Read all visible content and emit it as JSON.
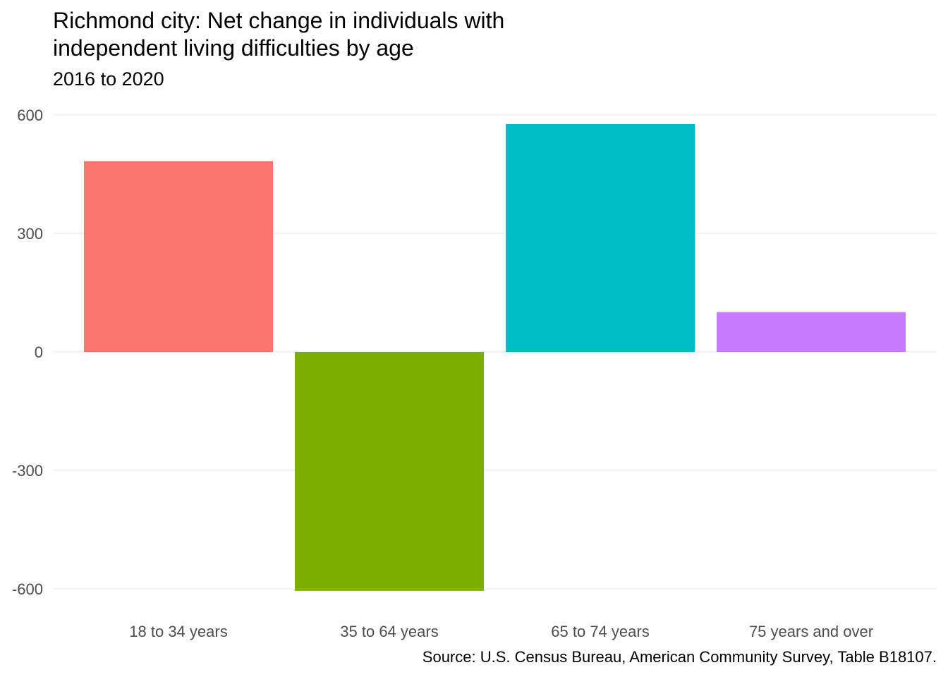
{
  "chart_data": {
    "type": "bar",
    "title_lines": [
      "Richmond city: Net change in individuals with",
      "independent living difficulties by age"
    ],
    "subtitle": "2016 to 2020",
    "caption": "Source: U.S. Census Bureau, American Community Survey, Table B18107.",
    "xlabel": "",
    "ylabel": "",
    "categories": [
      "18 to 34 years",
      "35 to 64 years",
      "65 to 74 years",
      "75 years and over"
    ],
    "values": [
      483,
      -605,
      577,
      101
    ],
    "colors": [
      "#F8766D",
      "#7CAE00",
      "#00BFC4",
      "#C77CFF"
    ],
    "yticks": [
      600,
      300,
      0,
      -300,
      -600
    ],
    "ytick_labels": [
      "600",
      "300",
      "0",
      "-300",
      "-600"
    ],
    "ylim": [
      -640,
      640
    ],
    "grid": true,
    "legend": "none"
  }
}
